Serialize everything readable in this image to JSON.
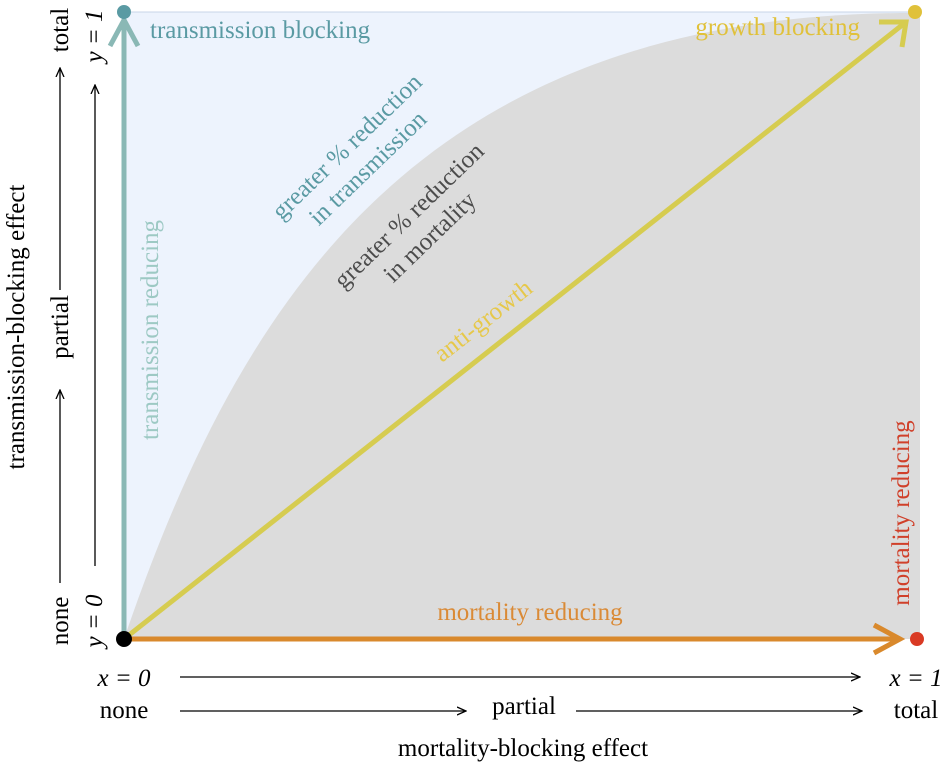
{
  "colors": {
    "transmission": "#5a9aa3",
    "transmission_axis": "#8ab8b5",
    "transmission_vertical_label": "#9dc9c4",
    "growth": "#e0c13a",
    "anti_growth": "#d6cc50",
    "mortality_arrow": "#d9892c",
    "mortality_label": "#da8a36",
    "mortality_point": "#d93a24",
    "mortality_vertical_label": "#d0402a",
    "region_light": "#edf3fd",
    "region_gray": "#dcdcdc",
    "mortality_region_text": "#4c4c4c",
    "origin": "#000000"
  },
  "labels": {
    "transmission_blocking": "transmission blocking",
    "growth_blocking": "growth blocking",
    "transmission_reducing": "transmission reducing",
    "mortality_reducing_horizontal": "mortality reducing",
    "mortality_reducing_vertical": "mortality reducing",
    "anti_growth": "anti-growth",
    "transmission_region_line1": "greater % reduction",
    "transmission_region_line2": "in transmission",
    "mortality_region_line1": "greater % reduction",
    "mortality_region_line2": "in mortality"
  },
  "x_axis": {
    "title": "mortality-blocking effect",
    "start_value": "x = 0",
    "end_value": "x = 1",
    "start_label": "none",
    "mid_label": "partial",
    "end_label": "total"
  },
  "y_axis": {
    "title": "transmission-blocking effect",
    "start_value": "y = 0",
    "end_value": "y = 1",
    "start_label": "none",
    "mid_label": "partial",
    "end_label": "total"
  }
}
